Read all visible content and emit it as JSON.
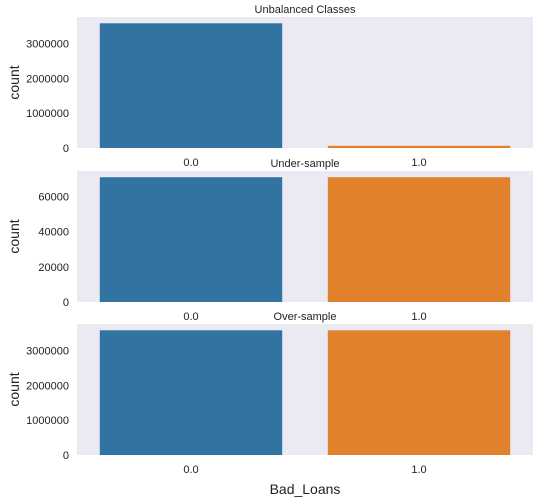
{
  "colors": {
    "panel_bg": "#eaeaf2",
    "bar_0": "#3274a1",
    "bar_1": "#e1812c"
  },
  "chart_data": [
    {
      "type": "bar",
      "title": "Unbalanced Classes",
      "xlabel": "",
      "ylabel": "count",
      "categories": [
        "0.0",
        "1.0"
      ],
      "values": [
        3580000,
        62000
      ],
      "ylim": [
        0,
        3760000
      ],
      "yticks": [
        0,
        1000000,
        2000000,
        3000000
      ],
      "ytick_labels": [
        "0",
        "1000000",
        "2000000",
        "3000000"
      ],
      "grid": false
    },
    {
      "type": "bar",
      "title": "Under-sample",
      "xlabel": "",
      "ylabel": "count",
      "categories": [
        "0.0",
        "1.0"
      ],
      "values": [
        71000,
        71000
      ],
      "ylim": [
        0,
        74500
      ],
      "yticks": [
        0,
        20000,
        40000,
        60000
      ],
      "ytick_labels": [
        "0",
        "20000",
        "40000",
        "60000"
      ],
      "grid": false
    },
    {
      "type": "bar",
      "title": "Over-sample",
      "xlabel": "Bad_Loans",
      "ylabel": "count",
      "categories": [
        "0.0",
        "1.0"
      ],
      "values": [
        3580000,
        3580000
      ],
      "ylim": [
        0,
        3760000
      ],
      "yticks": [
        0,
        1000000,
        2000000,
        3000000
      ],
      "ytick_labels": [
        "0",
        "1000000",
        "2000000",
        "3000000"
      ],
      "grid": false
    }
  ]
}
